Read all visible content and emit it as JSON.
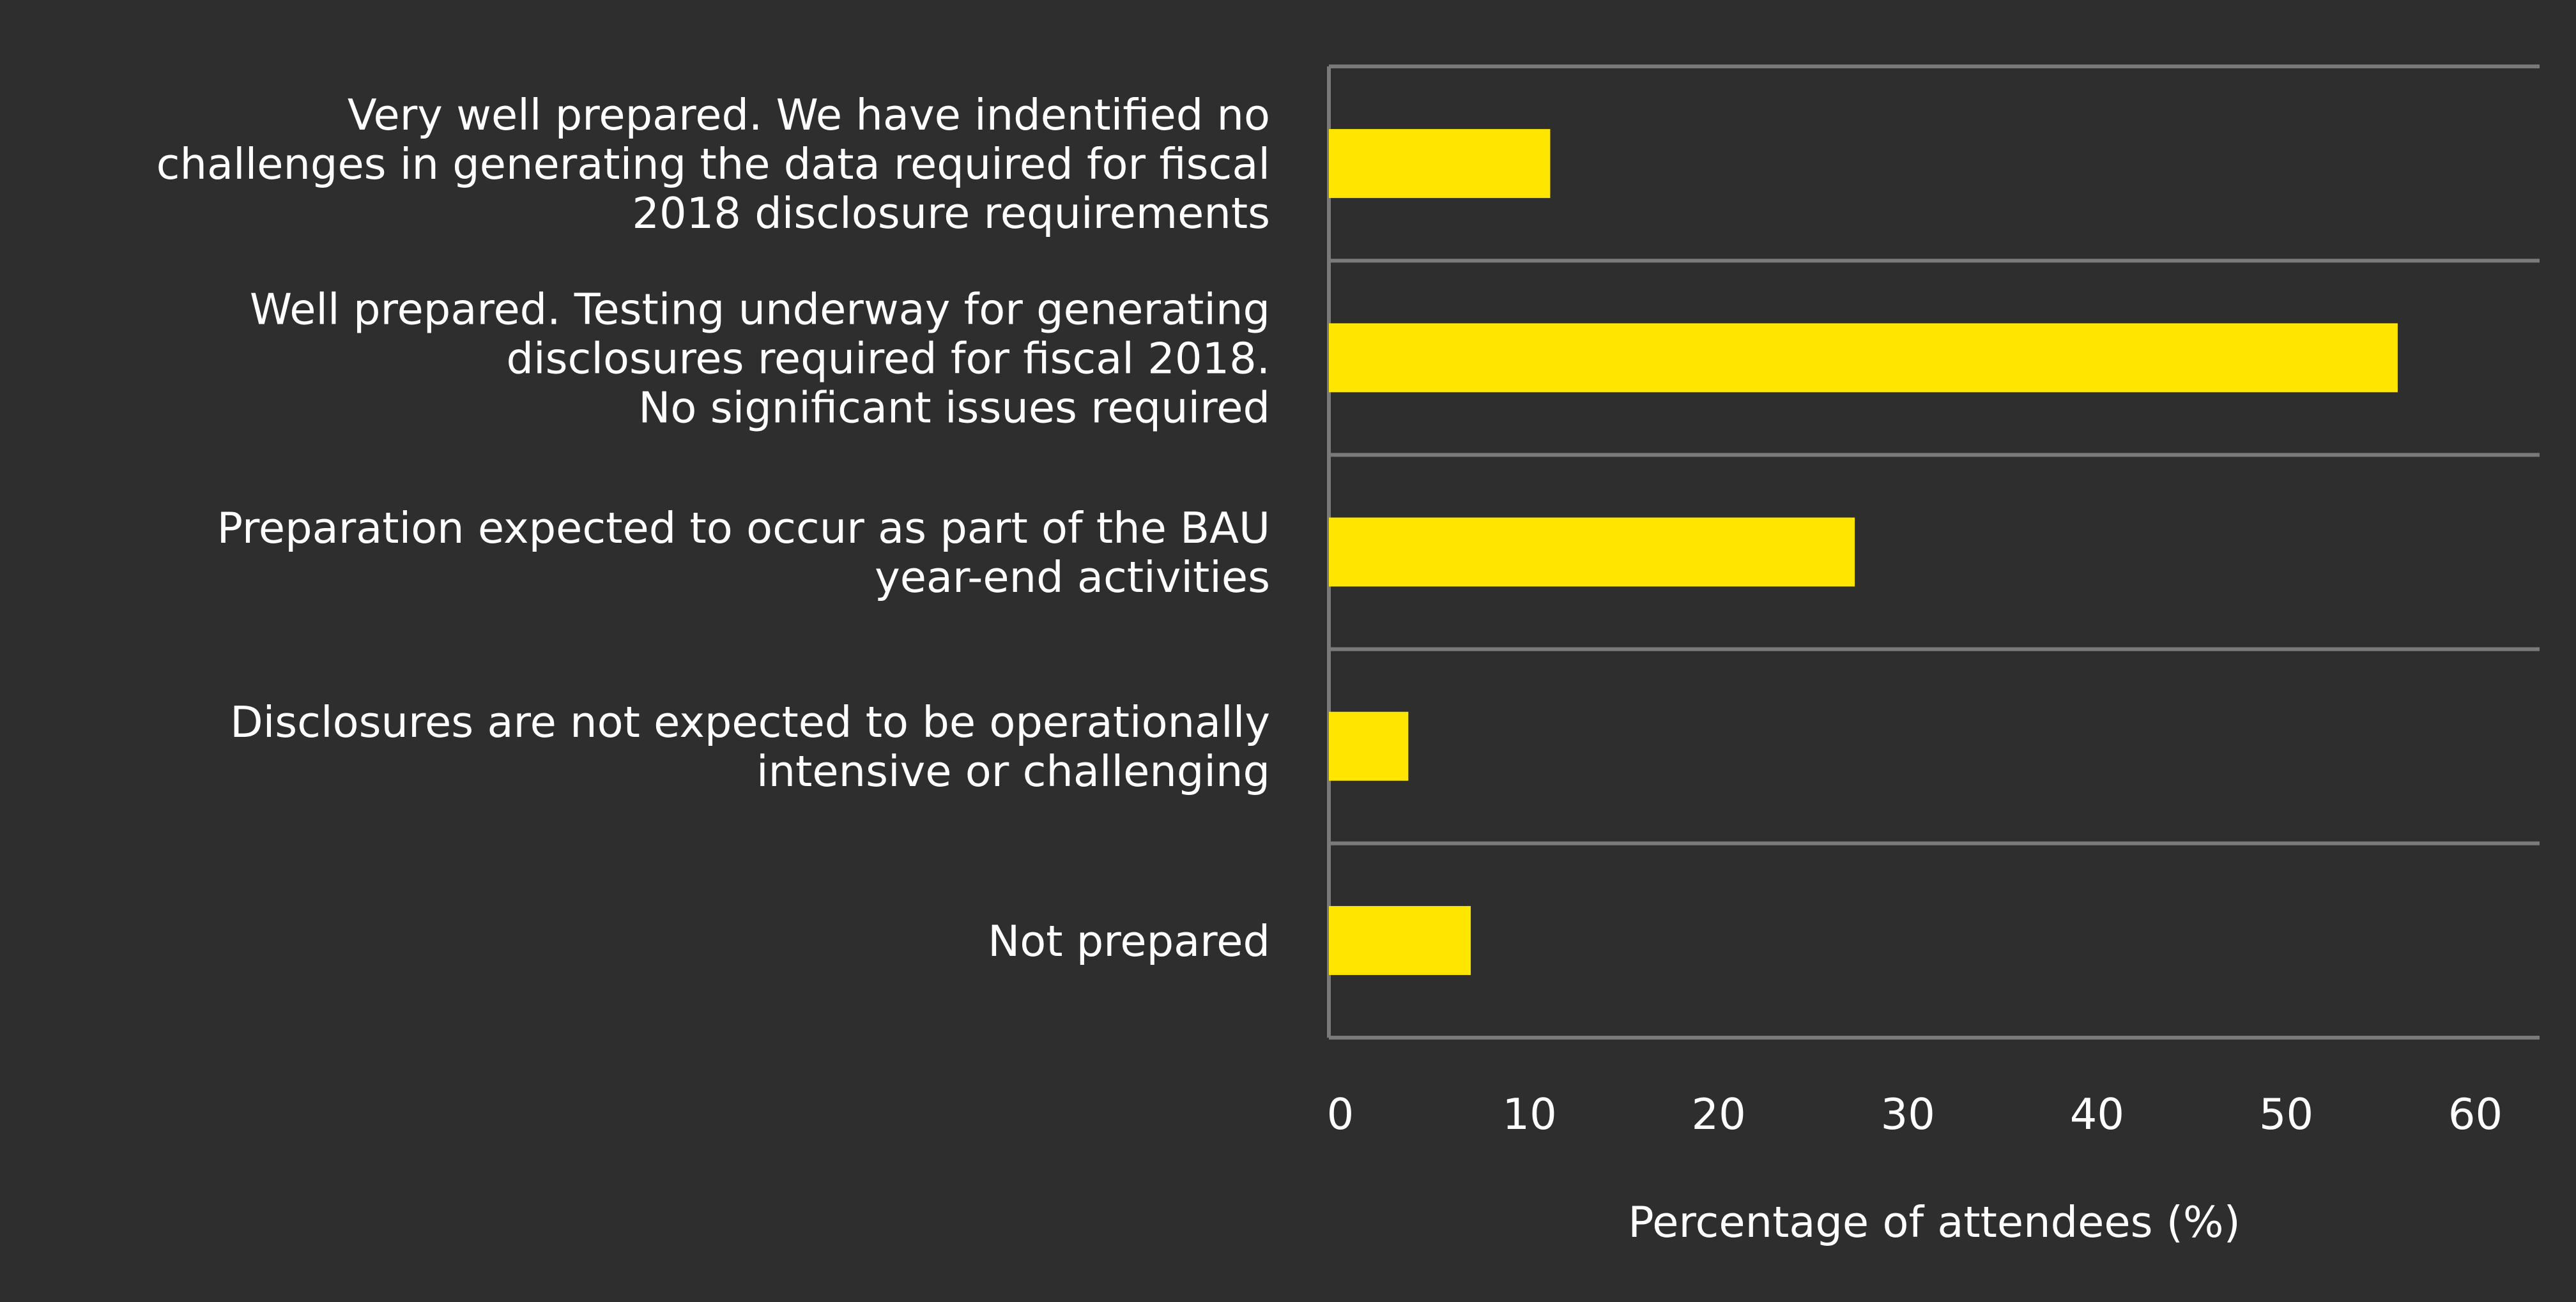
{
  "chart_data": {
    "type": "bar",
    "orientation": "horizontal",
    "categories": [
      "Very well prepared. We have indentified no challenges in generating the data required for fiscal 2018 disclosure requirements",
      "Well prepared. Testing underway for generating disclosures required for fiscal 2018. No significant issues required",
      "Preparation expected to occur as part of the BAU year-end activities",
      "Disclosures are not expected to be operationally intensive or challenging",
      "Not prepared"
    ],
    "category_lines": [
      [
        "Very well prepared. We have indentified no",
        "challenges in generating the data required for fiscal",
        "2018 disclosure requirements"
      ],
      [
        "Well prepared. Testing underway for generating",
        "disclosures required for fiscal 2018.",
        "No significant issues required"
      ],
      [
        "Preparation expected to occur as part of the BAU",
        "year-end activities"
      ],
      [
        "Disclosures are not expected to be operationally",
        "intensive or challenging"
      ],
      [
        "Not prepared"
      ]
    ],
    "values": [
      11.7,
      56.5,
      27.8,
      4.2,
      7.5
    ],
    "xlabel": "Percentage of attendees (%)",
    "ylabel": "",
    "xlim": [
      0,
      64
    ],
    "ticks": [
      0,
      10,
      20,
      30,
      40,
      50,
      60
    ],
    "grid": "horizontal separators between categories",
    "colors": {
      "background": "#2e2e2e",
      "bar": "#ffe600",
      "grid": "#7a7a7a",
      "text": "#ffffff"
    }
  }
}
